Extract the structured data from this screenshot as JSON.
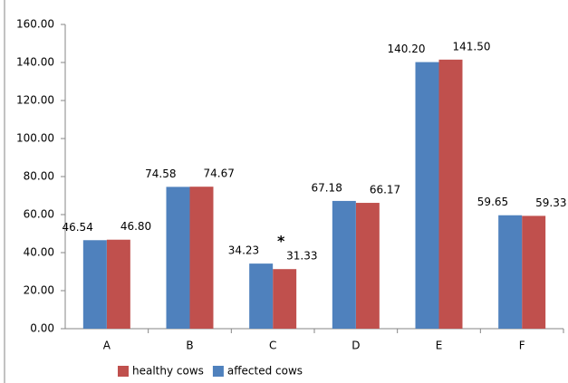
{
  "chart_data": {
    "type": "bar",
    "categories": [
      "A",
      "B",
      "C",
      "D",
      "E",
      "F"
    ],
    "series": [
      {
        "name": "healthy cows",
        "color": "#c0504d",
        "values": [
          46.8,
          74.67,
          31.33,
          66.17,
          141.5,
          59.33
        ],
        "value_labels": [
          "46.80",
          "74.67",
          "31.33",
          "66.17",
          "141.50",
          "59.33"
        ]
      },
      {
        "name": "affected cows",
        "color": "#4f81bd",
        "values": [
          46.54,
          74.58,
          34.23,
          67.18,
          140.2,
          59.65
        ],
        "value_labels": [
          "46.54",
          "74.58",
          "34.23",
          "67.18",
          "140.20",
          "59.65"
        ]
      }
    ],
    "annotations": [
      {
        "text": "*",
        "category": "C",
        "series": "healthy cows"
      }
    ],
    "ylim": [
      0,
      160
    ],
    "yticks": [
      {
        "value": 0,
        "label": "0.00"
      },
      {
        "value": 20,
        "label": "20.00"
      },
      {
        "value": 40,
        "label": "40.00"
      },
      {
        "value": 60,
        "label": "60.00"
      },
      {
        "value": 80,
        "label": "80.00"
      },
      {
        "value": 100,
        "label": "100.00"
      },
      {
        "value": 120,
        "label": "120.00"
      },
      {
        "value": 140,
        "label": "140.00"
      },
      {
        "value": 160,
        "label": "160.00"
      }
    ],
    "grid": false,
    "legend": "bottom"
  }
}
